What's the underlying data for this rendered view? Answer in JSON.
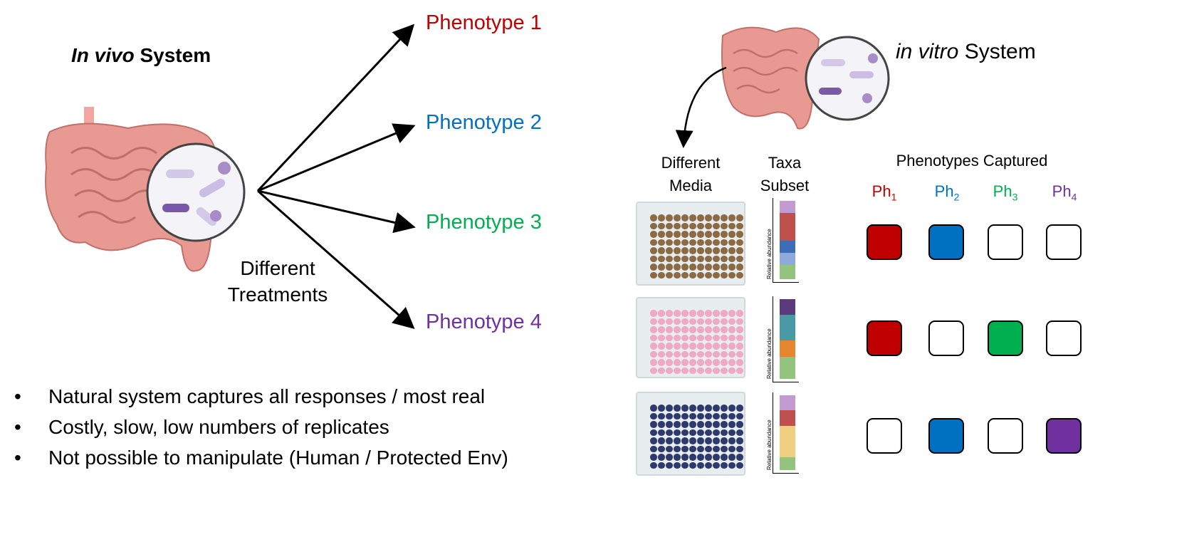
{
  "left": {
    "title_italic": "In vivo",
    "title_rest": " System",
    "treatments": "Different\nTreatments",
    "phenotypes": [
      {
        "label": "Phenotype 1",
        "color": "#c00000"
      },
      {
        "label": "Phenotype 2",
        "color": "#0070c0"
      },
      {
        "label": "Phenotype 3",
        "color": "#00b050"
      },
      {
        "label": "Phenotype 4",
        "color": "#7030a0"
      }
    ],
    "bullets": [
      "Natural system captures all responses / most real",
      "Costly, slow, low numbers of replicates",
      "Not possible to manipulate (Human / Protected Env)"
    ]
  },
  "right": {
    "title_italic": "in vitro",
    "title_rest": " System",
    "media_header": "Different\nMedia",
    "taxa_header": "Taxa\nSubset",
    "phen_header": "Phenotypes Captured",
    "axis_label": "Relative abundance",
    "ph_labels": [
      {
        "base": "Ph",
        "sub": "1",
        "color": "#c00000"
      },
      {
        "base": "Ph",
        "sub": "2",
        "color": "#0070c0"
      },
      {
        "base": "Ph",
        "sub": "3",
        "color": "#00b050"
      },
      {
        "base": "Ph",
        "sub": "4",
        "color": "#7030a0"
      }
    ],
    "rows": [
      {
        "well_color": "#8c6a44",
        "taxa": [
          {
            "c": "#c39bd3",
            "f": 15
          },
          {
            "c": "#c0504d",
            "f": 36
          },
          {
            "c": "#3d6db5",
            "f": 15
          },
          {
            "c": "#8ea9db",
            "f": 16
          },
          {
            "c": "#93c47d",
            "f": 18
          }
        ],
        "captured": [
          true,
          true,
          false,
          false
        ]
      },
      {
        "well_color": "#f0a8c4",
        "taxa": [
          {
            "c": "#5b3a7e",
            "f": 20
          },
          {
            "c": "#4a9aa5",
            "f": 32
          },
          {
            "c": "#e6862e",
            "f": 20
          },
          {
            "c": "#93c47d",
            "f": 28
          }
        ],
        "captured": [
          true,
          false,
          true,
          false
        ]
      },
      {
        "well_color": "#2e3a6e",
        "taxa": [
          {
            "c": "#c39bd3",
            "f": 20
          },
          {
            "c": "#c0504d",
            "f": 21
          },
          {
            "c": "#f0d080",
            "f": 42
          },
          {
            "c": "#93c47d",
            "f": 17
          }
        ],
        "captured": [
          false,
          true,
          false,
          true
        ]
      }
    ]
  }
}
